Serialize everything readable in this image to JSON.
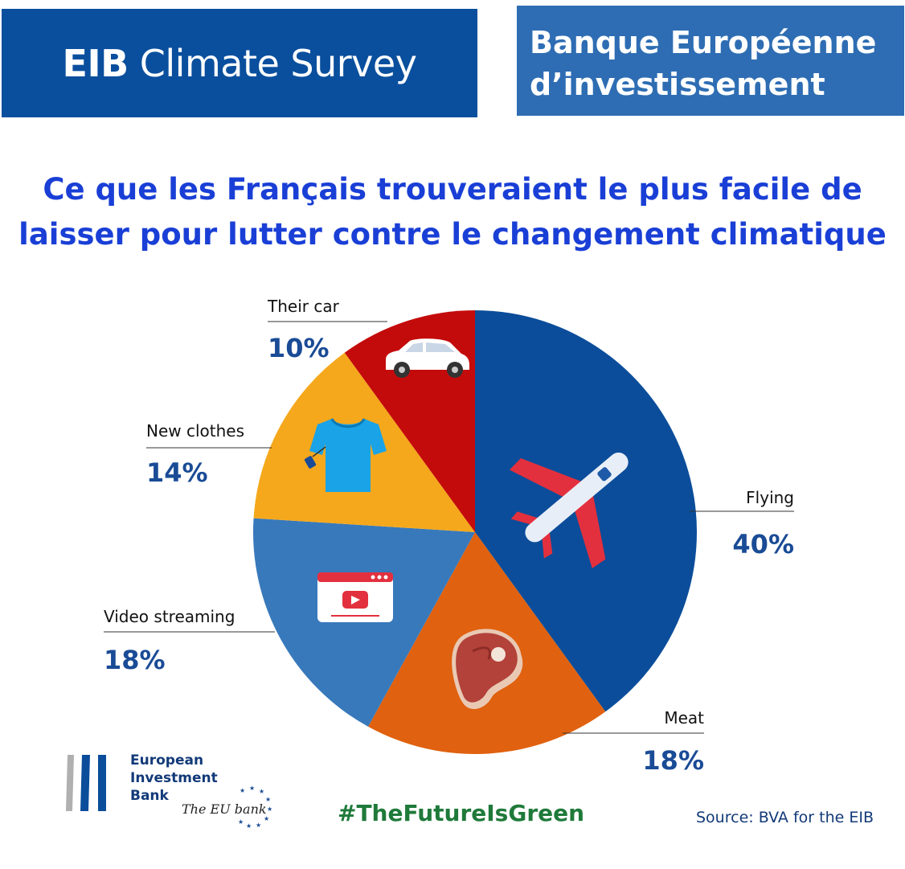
{
  "header": {
    "survey_bold": "EIB",
    "survey_rest": "Climate Survey",
    "bank_line1": "Banque Européenne",
    "bank_line2": "d’investissement"
  },
  "headline": {
    "line1": "Ce que les Français trouveraient le plus facile de",
    "line2": "laisser pour lutter contre le changement climatique"
  },
  "chart_data": {
    "type": "pie",
    "unit": "%",
    "slices": [
      {
        "label": "Flying",
        "value": 40,
        "display": "40%",
        "color": "#0b4d9a",
        "icon": "airplane-icon"
      },
      {
        "label": "Meat",
        "value": 18,
        "display": "18%",
        "color": "#e0610f",
        "icon": "steak-icon"
      },
      {
        "label": "Video streaming",
        "value": 18,
        "display": "18%",
        "color": "#3879bb",
        "icon": "video-player-icon"
      },
      {
        "label": "New clothes",
        "value": 14,
        "display": "14%",
        "color": "#f5a81c",
        "icon": "tshirt-icon"
      },
      {
        "label": "Their car",
        "value": 10,
        "display": "10%",
        "color": "#c40b0b",
        "icon": "car-icon"
      }
    ]
  },
  "footer": {
    "bank_name": [
      "European",
      "Investment",
      "Bank"
    ],
    "tagline": "The EU bank",
    "hashtag": "#TheFutureIsGreen",
    "source": "Source: BVA for the EIB"
  },
  "colors": {
    "banner_dark": "#0a4f9e",
    "banner_light": "#2e6db3",
    "headline": "#1a3fd6",
    "label_value": "#1a4b96",
    "hashtag": "#1f7a3a"
  }
}
